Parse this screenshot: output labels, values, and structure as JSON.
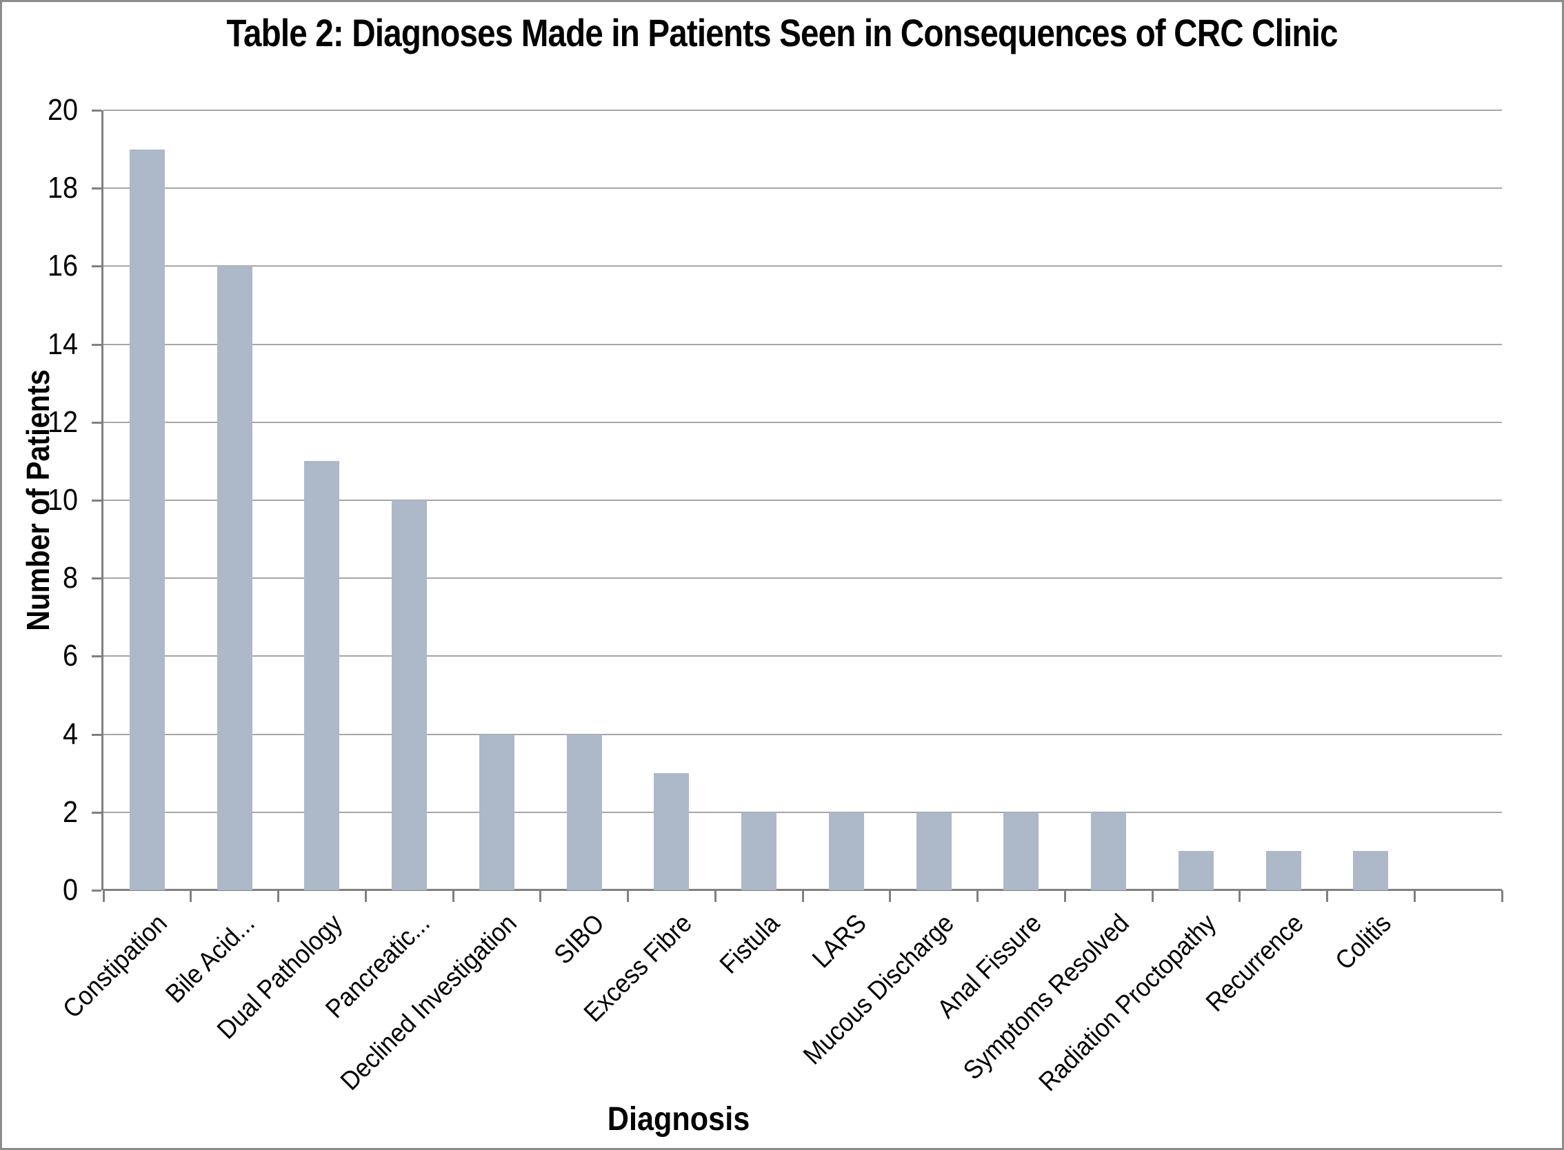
{
  "chart_data": {
    "type": "bar",
    "title": "Table 2: Diagnoses Made in Patients Seen in Consequences of CRC Clinic",
    "xlabel": "Diagnosis",
    "ylabel": "Number of Patients",
    "categories": [
      "Constipation",
      "Bile Acid...",
      "Dual Pathology",
      "Pancreatic...",
      "Declined Investigation",
      "SIBO",
      "Excess Fibre",
      "Fistula",
      "LARS",
      "Mucous Discharge",
      "Anal Fissure",
      "Symptoms Resolved",
      "Radiation Proctopathy",
      "Recurrence",
      "Colitis"
    ],
    "values": [
      19,
      16,
      11,
      10,
      4,
      4,
      3,
      2,
      2,
      2,
      2,
      2,
      1,
      1,
      1
    ],
    "ylim": [
      0,
      20
    ],
    "ytick_step": 2,
    "yticks": [
      0,
      2,
      4,
      6,
      8,
      10,
      12,
      14,
      16,
      18,
      20
    ],
    "grid": "horizontal",
    "legend": "none",
    "extra_empty_category_slots_right": 1,
    "colors": {
      "bar": "#ADB8C9",
      "gridline": "#A6A6A6",
      "axis": "#808080",
      "text": "#000000",
      "background": "#FFFFFF",
      "frame_border": "#8C8C8C"
    }
  }
}
